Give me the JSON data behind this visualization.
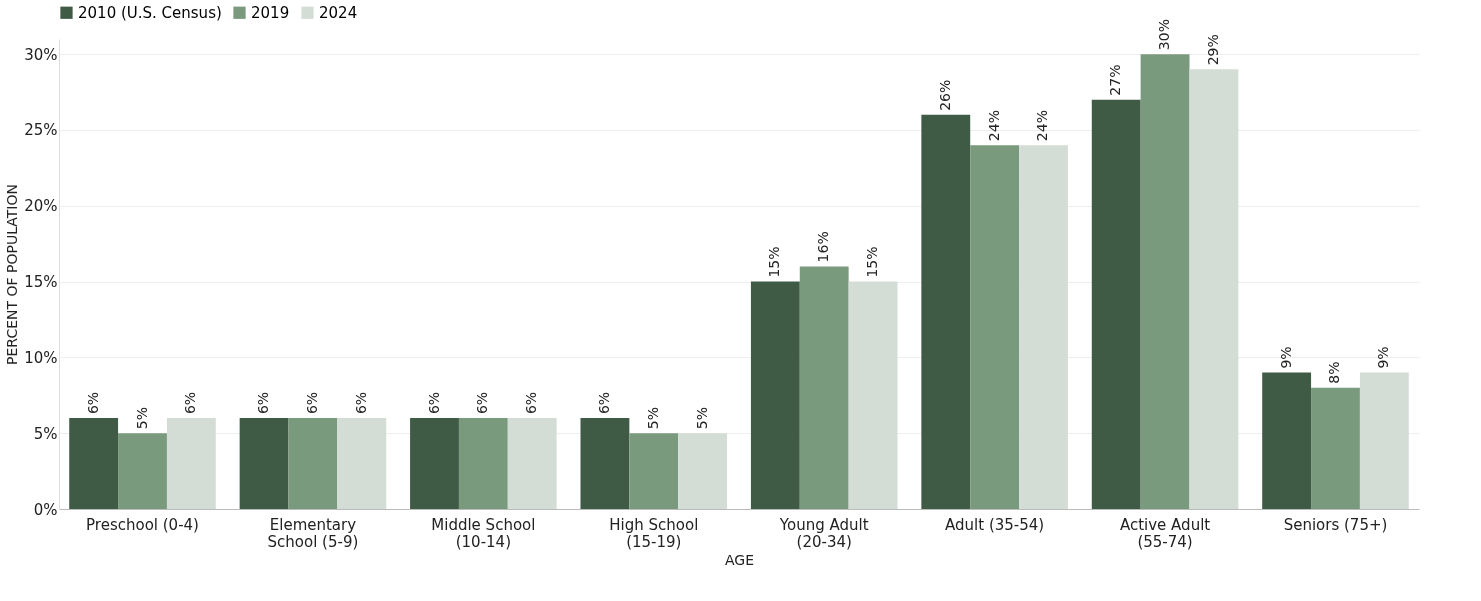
{
  "chart_data": {
    "type": "bar",
    "xlabel": "AGE",
    "ylabel": "PERCENT OF POPULATION",
    "categories": [
      "Preschool (0-4)",
      "Elementary School (5-9)",
      "Middle School (10-14)",
      "High School (15-19)",
      "Young Adult (20-34)",
      "Adult (35-54)",
      "Active Adult (55-74)",
      "Seniors (75+)"
    ],
    "series": [
      {
        "name": "2010 (U.S. Census)",
        "color": "#3f5a45",
        "values": [
          6,
          6,
          6,
          6,
          15,
          26,
          27,
          9
        ],
        "value_labels": [
          "6%",
          "6%",
          "6%",
          "6%",
          "15%",
          "26%",
          "27%",
          "9%"
        ]
      },
      {
        "name": "2019",
        "color": "#7a9a7e",
        "values": [
          5,
          6,
          6,
          5,
          16,
          24,
          30,
          8
        ],
        "value_labels": [
          "5%",
          "6%",
          "6%",
          "5%",
          "16%",
          "24%",
          "30%",
          "8%"
        ]
      },
      {
        "name": "2024",
        "color": "#d3ddd5",
        "values": [
          6,
          6,
          6,
          5,
          15,
          24,
          29,
          9
        ],
        "value_labels": [
          "6%",
          "6%",
          "6%",
          "5%",
          "15%",
          "24%",
          "29%",
          "9%"
        ]
      }
    ],
    "ylim": [
      0,
      31
    ],
    "yticks": [
      {
        "value": 0,
        "label": "0%"
      },
      {
        "value": 5,
        "label": "5%"
      },
      {
        "value": 10,
        "label": "10%"
      },
      {
        "value": 15,
        "label": "15%"
      },
      {
        "value": 20,
        "label": "20%"
      },
      {
        "value": 25,
        "label": "25%"
      },
      {
        "value": 30,
        "label": "30%"
      }
    ],
    "grid": "y",
    "legend": "top"
  }
}
